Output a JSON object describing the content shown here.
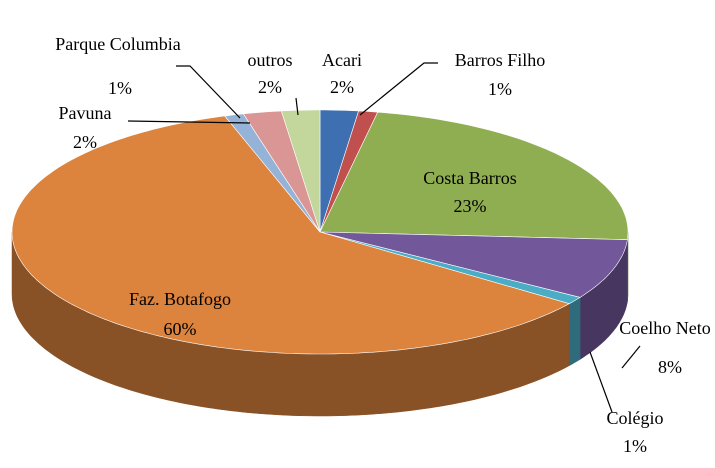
{
  "chart_data": {
    "type": "pie",
    "categories": [
      "Acari",
      "Barros Filho",
      "Costa Barros",
      "Coelho Neto",
      "Colégio",
      "Faz. Botafogo",
      "Parque Columbia",
      "Pavuna",
      "outros"
    ],
    "values": [
      2,
      1,
      23,
      8,
      1,
      60,
      1,
      2,
      2
    ],
    "value_labels": [
      "2%",
      "1%",
      "23%",
      "8%",
      "1%",
      "60%",
      "1%",
      "2%",
      "2%"
    ],
    "colors": [
      "#3e6fb0",
      "#c0504d",
      "#8fae52",
      "#72579a",
      "#4bacc6",
      "#dc833d",
      "#95b3d7",
      "#d99694",
      "#c3d69b"
    ]
  }
}
